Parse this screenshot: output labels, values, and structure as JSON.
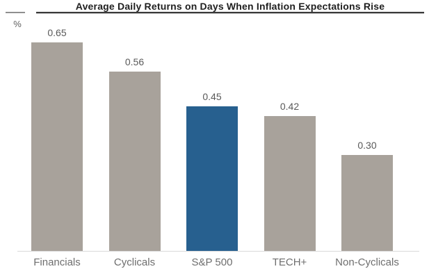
{
  "title": "Average Daily Returns on Days When Inflation Expectations Rise",
  "y_axis_unit": "%",
  "colors": {
    "default_bar": "#a8a29b",
    "highlight_bar": "#27608f",
    "title_text": "#1f1f1f",
    "value_label_text": "#595959",
    "category_label_text": "#6e6e6e",
    "baseline": "#d8d8d8"
  },
  "chart_data": {
    "type": "bar",
    "title": "Average Daily Returns on Days When Inflation Expectations Rise",
    "xlabel": "",
    "ylabel": "%",
    "ylim": [
      0,
      0.75
    ],
    "grid": false,
    "legend": null,
    "categories": [
      "Financials",
      "Cyclicals",
      "S&P 500",
      "TECH+",
      "Non-Cyclicals"
    ],
    "values": [
      0.65,
      0.56,
      0.45,
      0.42,
      0.3
    ],
    "value_labels": [
      "0.65",
      "0.56",
      "0.45",
      "0.42",
      "0.30"
    ],
    "bar_colors": [
      "#a8a29b",
      "#a8a29b",
      "#27608f",
      "#a8a29b",
      "#a8a29b"
    ],
    "highlight_index": 2
  }
}
